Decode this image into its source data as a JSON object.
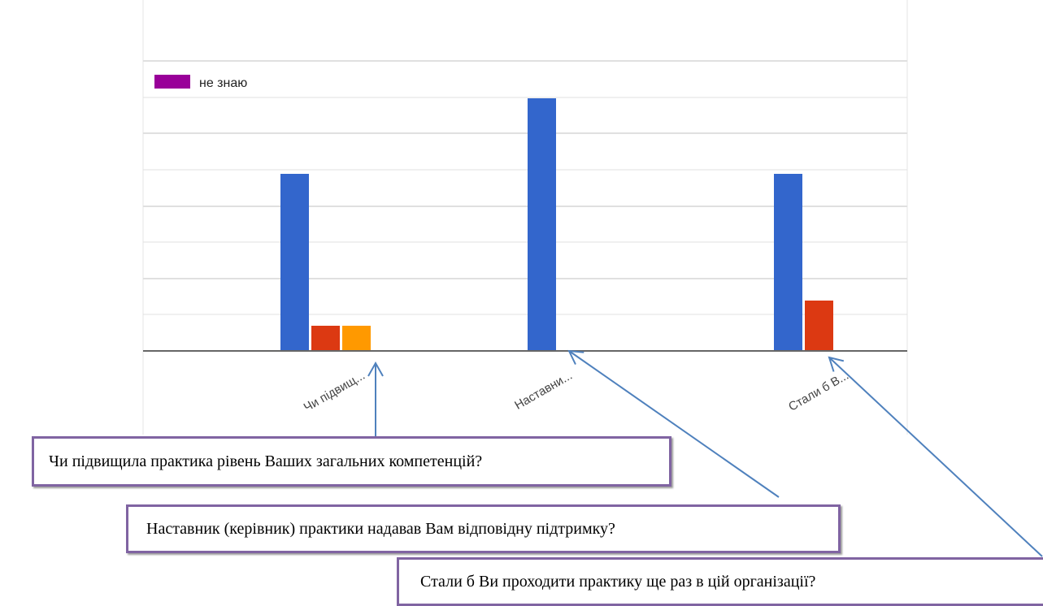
{
  "chart_data": {
    "type": "bar",
    "title": "",
    "xlabel": "",
    "ylabel": "",
    "categories": [
      "Чи підвищ...",
      "Наставни...",
      "Стали б В..."
    ],
    "series": [
      {
        "values": [
          7,
          10,
          7
        ],
        "color": "#3366cc"
      },
      {
        "values": [
          1,
          0,
          2
        ],
        "color": "#dc3912"
      },
      {
        "values": [
          1,
          0,
          0
        ],
        "color": "#ff9900"
      }
    ],
    "legend": {
      "visible_entries": [
        {
          "name": "не знаю",
          "color": "#990099"
        }
      ],
      "placement": "top-left"
    },
    "ylim": [
      0,
      12
    ],
    "gridlines": 12,
    "grid": true
  },
  "callouts": [
    {
      "text": "Чи підвищила практика рівень Ваших загальних компетенцій?"
    },
    {
      "text": "Наставник (керівник) практики надавав Вам відповідну підтримку?"
    },
    {
      "text": "Стали б Ви проходити практику ще раз в цій організації?"
    }
  ],
  "colors": {
    "callout_border": "#8064a2",
    "arrow": "#4f81bd",
    "axis": "#666666",
    "grid": "#e0e0e0"
  }
}
